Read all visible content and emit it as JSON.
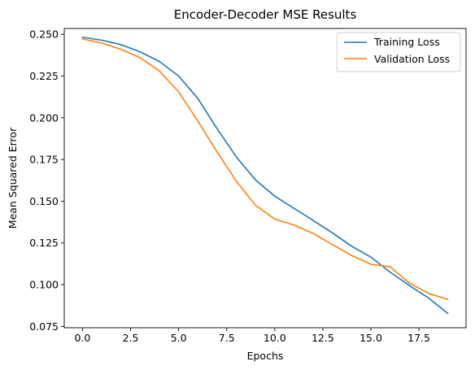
{
  "chart_data": {
    "type": "line",
    "title": "Encoder-Decoder MSE Results",
    "xlabel": "Epochs",
    "ylabel": "Mean Squared Error",
    "xlim": [
      -0.95,
      19.95
    ],
    "ylim": [
      0.0742,
      0.2535
    ],
    "xticks": [
      0.0,
      2.5,
      5.0,
      7.5,
      10.0,
      12.5,
      15.0,
      17.5
    ],
    "xtick_labels": [
      "0.0",
      "2.5",
      "5.0",
      "7.5",
      "10.0",
      "12.5",
      "15.0",
      "17.5"
    ],
    "yticks": [
      0.075,
      0.1,
      0.125,
      0.15,
      0.175,
      0.2,
      0.225,
      0.25
    ],
    "ytick_labels": [
      "0.075",
      "0.100",
      "0.125",
      "0.150",
      "0.175",
      "0.200",
      "0.225",
      "0.250"
    ],
    "grid": false,
    "legend_position": "top-right",
    "x": [
      0,
      1,
      2,
      3,
      4,
      5,
      6,
      7,
      8,
      9,
      10,
      11,
      12,
      13,
      14,
      15,
      16,
      17,
      18,
      19
    ],
    "series": [
      {
        "name": "Training Loss",
        "color": "#1f77b4",
        "values": [
          0.2482,
          0.2465,
          0.2438,
          0.2395,
          0.2337,
          0.225,
          0.2115,
          0.1935,
          0.1765,
          0.1627,
          0.153,
          0.1457,
          0.1385,
          0.131,
          0.123,
          0.1165,
          0.1075,
          0.0995,
          0.092,
          0.0828
        ]
      },
      {
        "name": "Validation Loss",
        "color": "#ff7f0e",
        "values": [
          0.2472,
          0.2448,
          0.241,
          0.236,
          0.228,
          0.2155,
          0.198,
          0.1795,
          0.162,
          0.1475,
          0.1393,
          0.1357,
          0.1307,
          0.124,
          0.1175,
          0.1122,
          0.1107,
          0.101,
          0.0947,
          0.0912
        ]
      }
    ]
  }
}
